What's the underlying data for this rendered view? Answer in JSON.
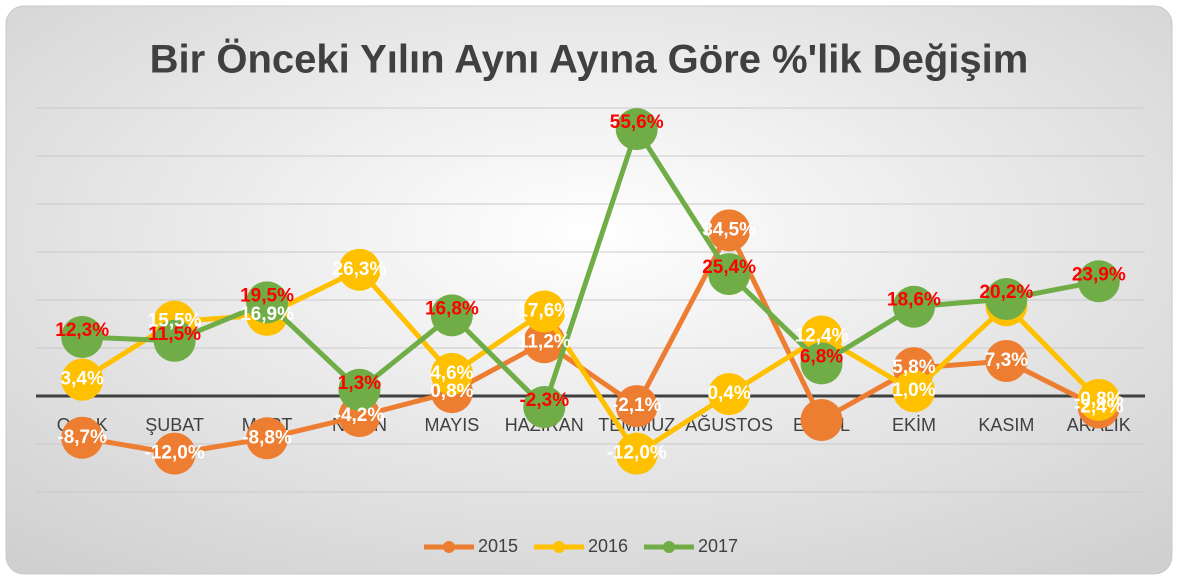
{
  "chart_data": {
    "type": "line",
    "title": "Bir Önceki Yılın Aynı Ayına Göre %'lik Değişim",
    "categories": [
      "OCAK",
      "ŞUBAT",
      "MART",
      "NİSAN",
      "MAYIS",
      "HAZİRAN",
      "TEMMUZ",
      "AĞUSTOS",
      "EYLÜL",
      "EKİM",
      "KASIM",
      "ARALIK"
    ],
    "ylim": [
      -20,
      60
    ],
    "yticks": [
      -20,
      -10,
      0,
      10,
      20,
      30,
      40,
      50,
      60
    ],
    "grid": true,
    "legend": "bottom",
    "series": [
      {
        "name": "2015",
        "color": "#ed7d31",
        "label_color": "#ffffff",
        "values": [
          -8.7,
          -12.0,
          -8.8,
          -4.2,
          0.8,
          11.2,
          -2.1,
          34.5,
          -5.0,
          5.8,
          7.3,
          -2.4
        ],
        "value_labels": [
          "-8,7%",
          "-12,0%",
          "-8,8%",
          "-4,2%",
          "0,8%",
          "11,2%",
          "-2,1%",
          "34,5%",
          null,
          "5,8%",
          "7,3%",
          "-2,4%"
        ]
      },
      {
        "name": "2016",
        "color": "#ffc000",
        "label_color": "#ffffff",
        "values": [
          3.4,
          15.5,
          16.9,
          26.3,
          4.6,
          17.6,
          -12.0,
          0.4,
          12.4,
          1.0,
          18.9,
          -0.8
        ],
        "value_labels": [
          "3,4%",
          "15,5%",
          "16,9%",
          "26,3%",
          "4,6%",
          "17,6%",
          "-12,0%",
          "0,4%",
          "12,4%",
          "1,0%",
          null,
          "-0,8%"
        ]
      },
      {
        "name": "2017",
        "color": "#70ad47",
        "label_color": "#ff0000",
        "values": [
          12.3,
          11.5,
          19.5,
          1.3,
          16.8,
          -2.3,
          55.6,
          25.4,
          6.8,
          18.6,
          20.2,
          23.9
        ],
        "value_labels": [
          "12,3%",
          "11,5%",
          "19,5%",
          "1,3%",
          "16,8%",
          "-2,3%",
          "55,6%",
          "25,4%",
          "6,8%",
          "18,6%",
          "20,2%",
          "23,9%"
        ]
      }
    ]
  }
}
